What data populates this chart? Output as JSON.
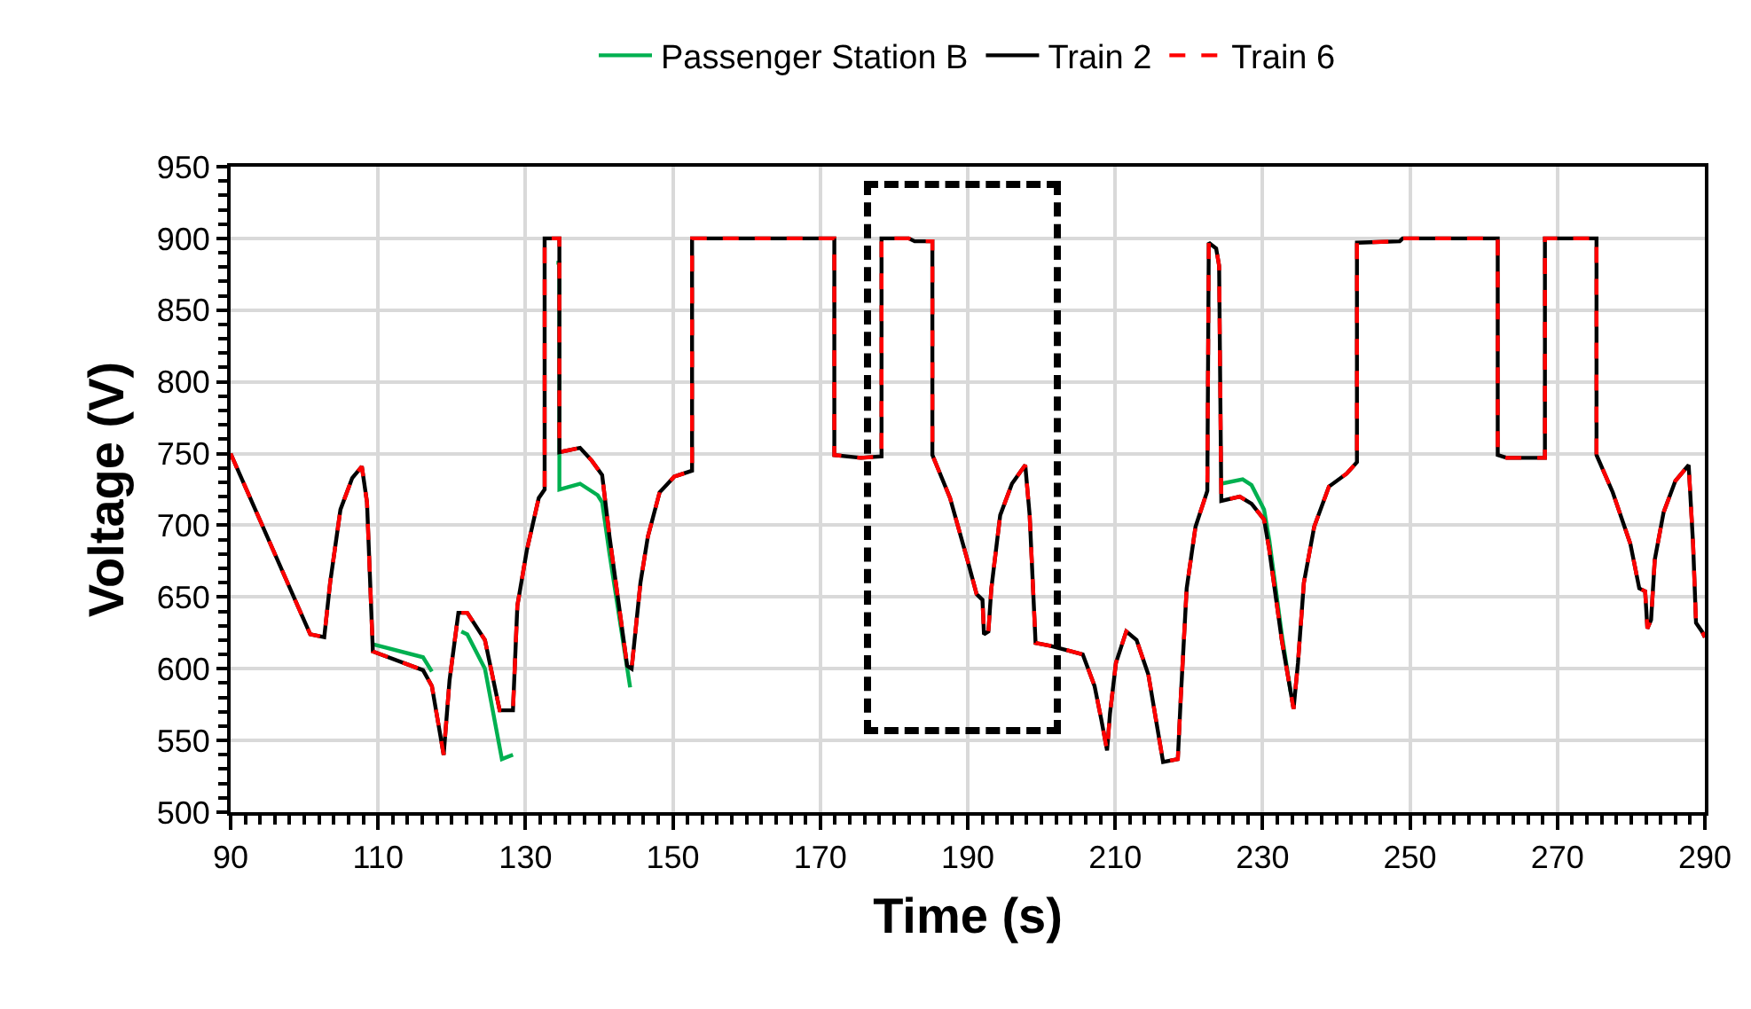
{
  "chart_data": {
    "type": "line",
    "xlabel": "Time (s)",
    "ylabel": "Voltage (V)",
    "xlim": [
      90,
      290
    ],
    "xticks": [
      90,
      110,
      130,
      150,
      170,
      190,
      210,
      230,
      250,
      270,
      290
    ],
    "ylim": [
      500,
      950
    ],
    "yticks": [
      500,
      550,
      600,
      650,
      700,
      750,
      800,
      850,
      900,
      950
    ],
    "grid": true,
    "legend": "top",
    "marker": "none",
    "series": [
      {
        "name": "Passenger Station B",
        "color": "#00b050",
        "line_style": "solid",
        "x": [
          109.3,
          116.1,
          117.3,
          118.5,
          120.6,
          121.3,
          122.1,
          124.5,
          126.8,
          128.3,
          130,
          134.2,
          134.6,
          134.6,
          137.4,
          139.8,
          140.4,
          141.4,
          144.2,
          224,
          224.4,
          227.3,
          228.5,
          230.2,
          230.9,
          232.6,
          233.8
        ],
        "values": [
          617,
          608,
          598,
          null,
          null,
          626,
          624,
          600,
          537,
          540,
          null,
          883,
          883,
          725,
          729,
          721,
          716,
          680,
          587,
          null,
          729,
          732,
          728,
          711,
          690,
          624,
          584
        ]
      },
      {
        "name": "Train 2",
        "color": "#000000",
        "line_style": "solid",
        "x": [
          90,
          100.8,
          102.7,
          103.5,
          104.9,
          106.5,
          107.8,
          108.5,
          109.3,
          116.1,
          117.3,
          118.9,
          119.7,
          120.9,
          122.1,
          124.5,
          126.5,
          128.3,
          128.9,
          130.2,
          131.8,
          132.6,
          132.6,
          134.6,
          134.6,
          137.4,
          139,
          140.4,
          141.4,
          143.8,
          144.4,
          145.6,
          146.6,
          148.2,
          150.2,
          152.6,
          152.6,
          171.9,
          171.9,
          175.5,
          178.3,
          178.3,
          182,
          182.8,
          185.2,
          185.2,
          187.6,
          190,
          191.2,
          192,
          192.2,
          192.8,
          193.2,
          194.4,
          196,
          197.8,
          198.4,
          199.2,
          201.2,
          205.6,
          207.2,
          208.1,
          208.9,
          209.3,
          210.1,
          211.5,
          212.9,
          214.5,
          216.5,
          218.5,
          218.9,
          219.7,
          220.9,
          222.5,
          222.7,
          223.7,
          224.1,
          224.4,
          226.9,
          228.5,
          230.2,
          230.9,
          232.6,
          234.2,
          234.8,
          235.6,
          237,
          239,
          241.4,
          242.8,
          242.8,
          248.6,
          249,
          261.9,
          261.9,
          263.1,
          268.3,
          268.3,
          275.3,
          275.3,
          277.5,
          279.9,
          281.1,
          281.9,
          282.2,
          282.7,
          283.2,
          284.4,
          286,
          287.8,
          288.4,
          288.8,
          289.6,
          290
        ],
        "values": [
          750,
          624,
          622,
          660,
          711,
          733,
          741,
          716,
          612,
          599,
          588,
          540,
          592,
          639,
          639,
          620,
          571,
          571,
          644,
          683,
          719,
          725,
          900,
          900,
          751,
          754,
          745,
          735,
          692,
          602,
          600,
          660,
          692,
          723,
          734,
          738,
          900,
          900,
          749,
          747,
          748,
          900,
          900,
          898,
          898,
          749,
          719,
          675,
          652,
          648,
          624,
          626,
          656,
          707,
          729,
          742,
          707,
          618,
          616,
          610,
          588,
          565,
          543,
          569,
          604,
          626,
          620,
          596,
          535,
          537,
          580,
          656,
          699,
          724,
          897,
          893,
          881,
          717,
          720,
          715,
          704,
          683,
          620,
          572,
          604,
          660,
          699,
          727,
          736,
          744,
          897,
          898,
          900,
          900,
          749,
          747,
          747,
          900,
          900,
          749,
          723,
          687,
          656,
          654,
          628,
          634,
          676,
          709,
          731,
          742,
          687,
          632,
          626,
          622
        ]
      },
      {
        "name": "Train 6",
        "color": "#ff0000",
        "line_style": "dashed",
        "x": [
          90,
          100.8,
          102.7,
          103.5,
          104.9,
          106.5,
          107.8,
          108.5,
          109.3,
          116.1,
          117.3,
          118.9,
          119.7,
          120.9,
          122.1,
          124.5,
          126.5,
          128.3,
          128.9,
          130.2,
          131.8,
          132.6,
          132.6,
          134.6,
          134.6,
          137.4,
          139,
          140.4,
          141.4,
          143.8,
          144.4,
          145.6,
          146.6,
          148.2,
          150.2,
          152.6,
          152.6,
          171.9,
          171.9,
          175.5,
          178.3,
          178.3,
          182,
          182.8,
          185.2,
          185.2,
          187.6,
          190,
          191.2,
          192,
          192.2,
          192.8,
          193.2,
          194.4,
          196,
          197.8,
          198.4,
          199.2,
          201.2,
          205.6,
          207.2,
          208.1,
          208.9,
          209.3,
          210.1,
          211.5,
          212.9,
          214.5,
          216.5,
          218.5,
          218.9,
          219.7,
          220.9,
          222.5,
          222.7,
          223.7,
          224.1,
          224.4,
          226.9,
          228.5,
          230.2,
          230.9,
          232.6,
          234.2,
          234.8,
          235.6,
          237,
          239,
          241.4,
          242.8,
          242.8,
          248.6,
          249,
          261.9,
          261.9,
          263.1,
          268.3,
          268.3,
          275.3,
          275.3,
          277.5,
          279.9,
          281.1,
          281.9,
          282.2,
          282.7,
          283.2,
          284.4,
          286,
          287.8,
          288.4,
          288.8,
          289.6,
          290
        ],
        "values": [
          750,
          624,
          622,
          660,
          711,
          733,
          741,
          716,
          612,
          599,
          588,
          540,
          592,
          639,
          639,
          620,
          571,
          571,
          644,
          683,
          719,
          725,
          900,
          900,
          751,
          754,
          745,
          735,
          692,
          602,
          600,
          660,
          692,
          723,
          734,
          738,
          900,
          900,
          749,
          747,
          748,
          900,
          900,
          898,
          898,
          749,
          719,
          675,
          652,
          648,
          624,
          626,
          656,
          707,
          729,
          742,
          707,
          618,
          616,
          610,
          588,
          565,
          543,
          569,
          604,
          626,
          620,
          596,
          535,
          537,
          580,
          656,
          699,
          724,
          897,
          893,
          881,
          717,
          720,
          715,
          704,
          683,
          620,
          572,
          604,
          660,
          699,
          727,
          736,
          744,
          897,
          898,
          900,
          900,
          749,
          747,
          747,
          900,
          900,
          749,
          723,
          687,
          656,
          654,
          628,
          634,
          676,
          709,
          731,
          742,
          687,
          632,
          626,
          622
        ]
      }
    ]
  }
}
